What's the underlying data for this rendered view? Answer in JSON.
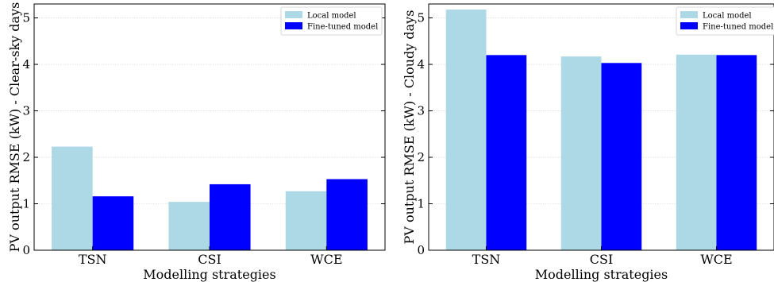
{
  "chart_data": [
    {
      "type": "bar",
      "categories": [
        "TSN",
        "CSI",
        "WCE"
      ],
      "series": [
        {
          "name": "Local model",
          "values": [
            2.23,
            1.04,
            1.27
          ],
          "color": "#add8e6"
        },
        {
          "name": "Fine-tuned model",
          "values": [
            1.16,
            1.42,
            1.53
          ],
          "color": "#0000ff"
        }
      ],
      "xlabel": "Modelling strategies",
      "ylabel": "PV output RMSE (kW) - Clear-sky days",
      "ylim": [
        0,
        5.3
      ],
      "yticks": [
        0,
        1,
        2,
        3,
        4,
        5
      ],
      "grid": "horizontal",
      "legend": "top-right"
    },
    {
      "type": "bar",
      "categories": [
        "TSN",
        "CSI",
        "WCE"
      ],
      "series": [
        {
          "name": "Local model",
          "values": [
            5.18,
            4.17,
            4.21
          ],
          "color": "#add8e6"
        },
        {
          "name": "Fine-tuned model",
          "values": [
            4.2,
            4.03,
            4.2
          ],
          "color": "#0000ff"
        }
      ],
      "xlabel": "Modelling strategies",
      "ylabel": "PV output RMSE (kW) - Cloudy days",
      "ylim": [
        0,
        5.3
      ],
      "yticks": [
        0,
        1,
        2,
        3,
        4,
        5
      ],
      "grid": "horizontal",
      "legend": "top-right"
    }
  ]
}
